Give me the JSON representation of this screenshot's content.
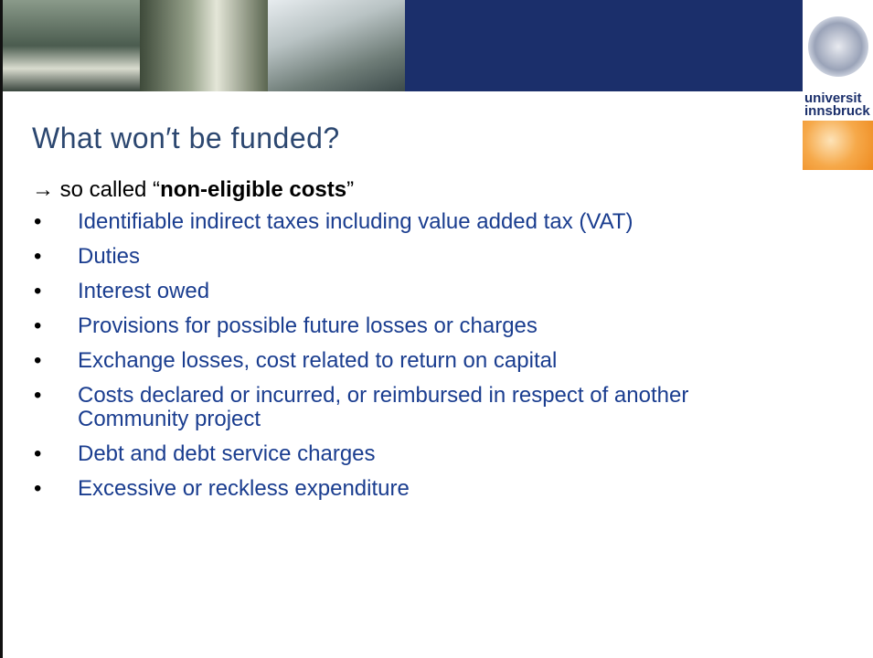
{
  "logo": {
    "lines": [
      "universit",
      "innsbruck"
    ]
  },
  "title": "What won′t be funded?",
  "intro": {
    "prefix": "→ so called “",
    "bold": "non-eligible costs",
    "suffix": "”"
  },
  "bullets": [
    "Identifiable indirect taxes including value added tax (VAT)",
    "Duties",
    "Interest owed",
    "Provisions for possible future losses or charges",
    "Exchange losses, cost related to return on capital",
    "Costs declared or incurred, or reimbursed in respect of another Community project",
    "Debt and debt service charges",
    "Excessive or reckless expenditure"
  ]
}
